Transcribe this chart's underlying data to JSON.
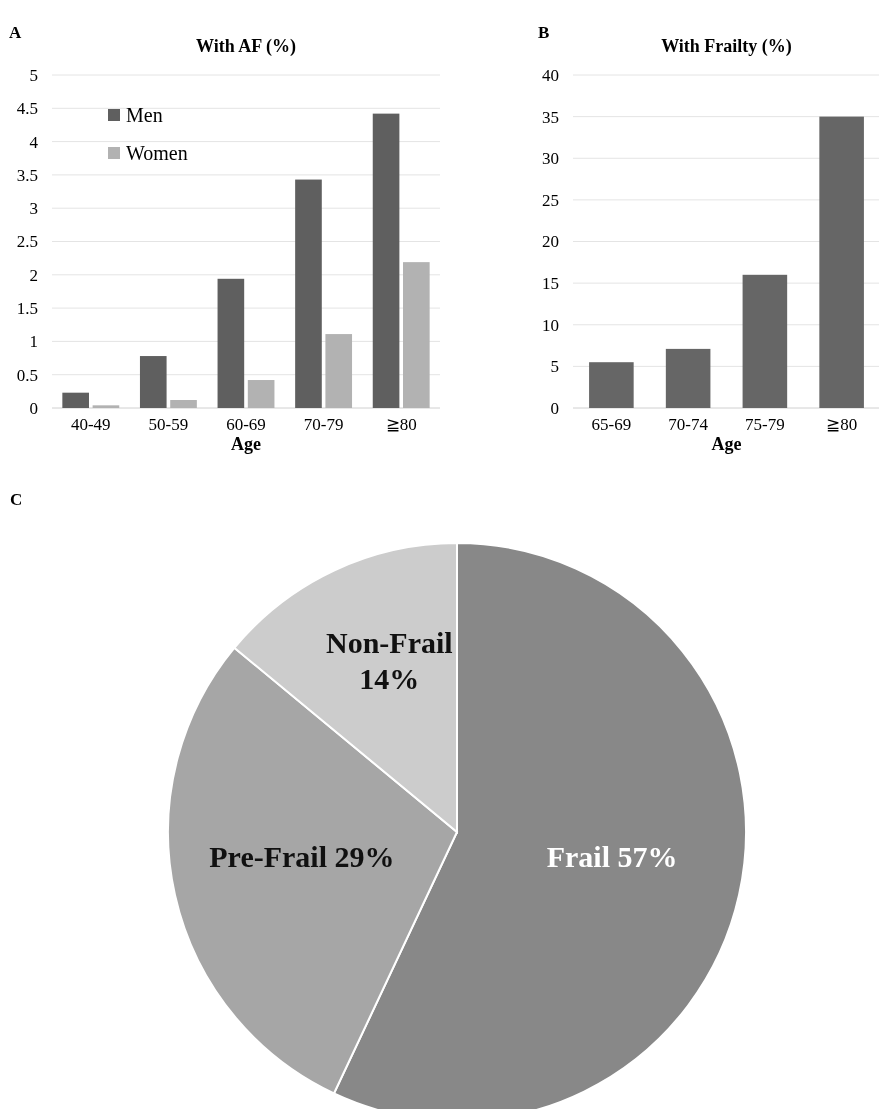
{
  "chart_data": [
    {
      "type": "bar",
      "title": "With AF (%)",
      "xlabel": "Age",
      "annotations": [
        "A"
      ],
      "categories": [
        "40-49",
        "50-59",
        "60-69",
        "70-79",
        "≧80"
      ],
      "series": [
        {
          "name": "Men",
          "color": "#5f5f5f",
          "values": [
            0.23,
            0.78,
            1.94,
            3.43,
            4.42
          ]
        },
        {
          "name": "Women",
          "color": "#b2b2b2",
          "values": [
            0.04,
            0.12,
            0.42,
            1.11,
            2.19
          ]
        }
      ],
      "ylim": [
        0,
        5
      ],
      "yticks": [
        0,
        0.5,
        1,
        1.5,
        2,
        2.5,
        3,
        3.5,
        4,
        4.5,
        5
      ],
      "grid": "y",
      "legend": "top left"
    },
    {
      "type": "bar",
      "title": "With Frailty (%)",
      "xlabel": "Age",
      "annotations": [
        "B"
      ],
      "categories": [
        "65-69",
        "70-74",
        "75-79",
        "≧80"
      ],
      "values": [
        5.5,
        7.1,
        16,
        35
      ],
      "color": "#666666",
      "ylim": [
        0,
        40
      ],
      "yticks": [
        0,
        5,
        10,
        15,
        20,
        25,
        30,
        35,
        40
      ],
      "grid": "y"
    },
    {
      "type": "pie",
      "annotations": [
        "C"
      ],
      "categories": [
        "Frail",
        "Pre-Frail",
        "Non-Frail"
      ],
      "values": [
        57,
        29,
        14
      ],
      "colors": [
        "#888888",
        "#a6a6a6",
        "#cccccc"
      ],
      "value_labels": [
        "57%",
        "29%",
        "14%"
      ]
    }
  ]
}
